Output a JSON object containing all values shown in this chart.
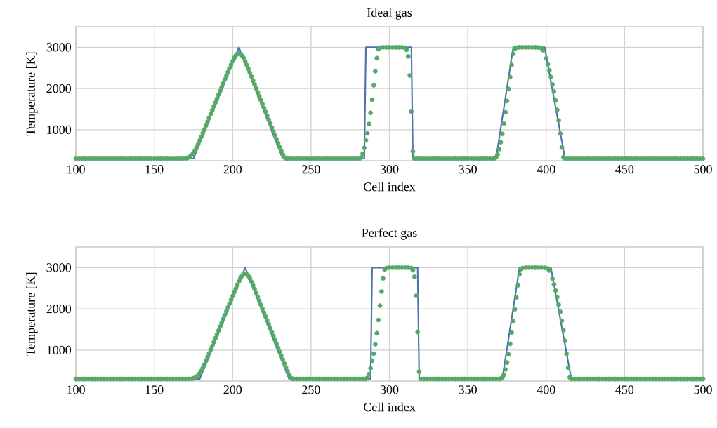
{
  "chart_data": [
    {
      "type": "line",
      "title": "Ideal gas",
      "xlabel": "Cell index",
      "ylabel": "Temperature [K]",
      "xlim": [
        100,
        500
      ],
      "ylim": [
        250,
        3500
      ],
      "xticks": [
        100,
        150,
        200,
        250,
        300,
        350,
        400,
        450,
        500
      ],
      "yticks": [
        1000,
        2000,
        3000
      ],
      "grid": true,
      "series": [
        {
          "color": "#4c72b0",
          "line_style": "solid",
          "marker": "none",
          "x": [
            100,
            175,
            204,
            232,
            284,
            285,
            314,
            315,
            368,
            379,
            399,
            412,
            500
          ],
          "values": [
            300,
            300,
            3000,
            300,
            300,
            3000,
            3000,
            300,
            300,
            3000,
            3000,
            300,
            300
          ]
        },
        {
          "type": "scatter",
          "color": "#55a868",
          "marker": "circle",
          "x": [
            100,
            102,
            104,
            106,
            108,
            110,
            112,
            114,
            116,
            118,
            120,
            122,
            124,
            126,
            128,
            130,
            132,
            134,
            136,
            138,
            140,
            142,
            144,
            146,
            148,
            150,
            152,
            154,
            156,
            158,
            160,
            162,
            164,
            166,
            168,
            170,
            171,
            172,
            173,
            174,
            175,
            176,
            177,
            178,
            179,
            180,
            181,
            182,
            183,
            184,
            185,
            186,
            187,
            188,
            189,
            190,
            191,
            192,
            193,
            194,
            195,
            196,
            197,
            198,
            199,
            200,
            201,
            202,
            203,
            204,
            205,
            206,
            207,
            208,
            209,
            210,
            211,
            212,
            213,
            214,
            215,
            216,
            217,
            218,
            219,
            220,
            221,
            222,
            223,
            224,
            225,
            226,
            227,
            228,
            229,
            230,
            231,
            232,
            233,
            234,
            235,
            237,
            239,
            241,
            243,
            245,
            247,
            249,
            251,
            253,
            255,
            257,
            259,
            261,
            263,
            265,
            267,
            269,
            271,
            273,
            275,
            277,
            279,
            281,
            282,
            283,
            284,
            285,
            286,
            287,
            288,
            289,
            290,
            291,
            292,
            293,
            294,
            296,
            298,
            300,
            302,
            304,
            306,
            308,
            310,
            311,
            312,
            313,
            314,
            315,
            316,
            318,
            320,
            322,
            324,
            326,
            328,
            330,
            332,
            334,
            336,
            338,
            340,
            342,
            344,
            346,
            348,
            350,
            352,
            354,
            356,
            358,
            360,
            362,
            364,
            366,
            367,
            368,
            369,
            370,
            371,
            372,
            373,
            374,
            375,
            376,
            377,
            378,
            379,
            380,
            381,
            383,
            385,
            387,
            389,
            391,
            393,
            395,
            397,
            398,
            400,
            401,
            402,
            403,
            404,
            405,
            406,
            407,
            408,
            409,
            410,
            411,
            412,
            414,
            416,
            418,
            420,
            422,
            424,
            426,
            428,
            430,
            432,
            434,
            436,
            438,
            440,
            442,
            444,
            446,
            448,
            450,
            452,
            454,
            456,
            458,
            460,
            462,
            464,
            466,
            468,
            470,
            472,
            474,
            476,
            478,
            480,
            482,
            484,
            486,
            488,
            490,
            492,
            494,
            496,
            498,
            500
          ],
          "values": [
            300,
            300,
            300,
            300,
            300,
            300,
            300,
            300,
            300,
            300,
            300,
            300,
            300,
            300,
            300,
            300,
            300,
            300,
            300,
            300,
            300,
            300,
            300,
            300,
            300,
            300,
            300,
            300,
            300,
            300,
            300,
            300,
            300,
            300,
            300,
            305,
            315,
            330,
            355,
            390,
            440,
            500,
            570,
            650,
            740,
            830,
            920,
            1010,
            1100,
            1195,
            1290,
            1380,
            1475,
            1570,
            1660,
            1755,
            1850,
            1940,
            2035,
            2125,
            2220,
            2310,
            2400,
            2490,
            2575,
            2660,
            2740,
            2800,
            2840,
            2850,
            2840,
            2800,
            2740,
            2655,
            2570,
            2480,
            2385,
            2290,
            2195,
            2100,
            2005,
            1910,
            1815,
            1720,
            1625,
            1530,
            1435,
            1340,
            1245,
            1150,
            1055,
            960,
            865,
            770,
            675,
            580,
            490,
            400,
            330,
            305,
            300,
            300,
            300,
            300,
            300,
            300,
            300,
            300,
            300,
            300,
            300,
            300,
            300,
            300,
            300,
            300,
            300,
            300,
            300,
            300,
            300,
            300,
            300,
            300,
            330,
            420,
            560,
            744,
            914,
            1142,
            1410,
            1730,
            2077,
            2419,
            2738,
            2954,
            2990,
            3000,
            3000,
            3000,
            3000,
            3000,
            3000,
            3000,
            2990,
            2937,
            2778,
            2316,
            1439,
            476,
            300,
            300,
            300,
            300,
            300,
            300,
            300,
            300,
            300,
            300,
            300,
            300,
            300,
            300,
            300,
            300,
            300,
            300,
            300,
            300,
            300,
            300,
            300,
            300,
            300,
            300,
            310,
            330,
            400,
            530,
            698,
            900,
            1150,
            1425,
            1700,
            1990,
            2280,
            2570,
            2840,
            2960,
            2990,
            3000,
            3000,
            3000,
            3000,
            3000,
            3000,
            2995,
            2980,
            2931,
            2731,
            2588,
            2444,
            2284,
            2101,
            1929,
            1711,
            1482,
            1225,
            910,
            572,
            337,
            300,
            300,
            300,
            300,
            300,
            300,
            300,
            300,
            300,
            300,
            300,
            300,
            300,
            300,
            300,
            300,
            300,
            300,
            300,
            300,
            300,
            300,
            300,
            300,
            300,
            300,
            300,
            300,
            300,
            300,
            300,
            300,
            300,
            300,
            300,
            300,
            300,
            300,
            300,
            300,
            300,
            300,
            300,
            300,
            300
          ]
        }
      ]
    },
    {
      "type": "line",
      "title": "Perfect gas",
      "xlabel": "Cell index",
      "ylabel": "Temperature [K]",
      "xlim": [
        100,
        500
      ],
      "ylim": [
        250,
        3500
      ],
      "xticks": [
        100,
        150,
        200,
        250,
        300,
        350,
        400,
        450,
        500
      ],
      "yticks": [
        1000,
        2000,
        3000
      ],
      "grid": true,
      "series": [
        {
          "color": "#4c72b0",
          "line_style": "solid",
          "marker": "none",
          "x": [
            100,
            179,
            208,
            236,
            288,
            289,
            318,
            319,
            372,
            383,
            403,
            416,
            500
          ],
          "values": [
            300,
            300,
            3000,
            300,
            300,
            3000,
            3000,
            300,
            300,
            3000,
            3000,
            300,
            300
          ]
        },
        {
          "type": "scatter",
          "color": "#55a868",
          "marker": "circle",
          "x": [
            100,
            102,
            104,
            106,
            108,
            110,
            112,
            114,
            116,
            118,
            120,
            122,
            124,
            126,
            128,
            130,
            132,
            134,
            136,
            138,
            140,
            142,
            144,
            146,
            148,
            150,
            152,
            154,
            156,
            158,
            160,
            162,
            164,
            166,
            168,
            170,
            172,
            174,
            175,
            176,
            177,
            178,
            179,
            180,
            181,
            182,
            183,
            184,
            185,
            186,
            187,
            188,
            189,
            190,
            191,
            192,
            193,
            194,
            195,
            196,
            197,
            198,
            199,
            200,
            201,
            202,
            203,
            204,
            205,
            206,
            207,
            208,
            209,
            210,
            211,
            212,
            213,
            214,
            215,
            216,
            217,
            218,
            219,
            220,
            221,
            222,
            223,
            224,
            225,
            226,
            227,
            228,
            229,
            230,
            231,
            232,
            233,
            234,
            235,
            236,
            237,
            238,
            239,
            241,
            243,
            245,
            247,
            249,
            251,
            253,
            255,
            257,
            259,
            261,
            263,
            265,
            267,
            269,
            271,
            273,
            275,
            277,
            279,
            281,
            283,
            285,
            286,
            287,
            288,
            289,
            290,
            291,
            292,
            293,
            294,
            295,
            296,
            297,
            298,
            300,
            302,
            304,
            306,
            308,
            310,
            312,
            314,
            315,
            316,
            317,
            318,
            319,
            320,
            322,
            324,
            326,
            328,
            330,
            332,
            334,
            336,
            338,
            340,
            342,
            344,
            346,
            348,
            350,
            352,
            354,
            356,
            358,
            360,
            362,
            364,
            366,
            368,
            370,
            371,
            372,
            373,
            374,
            375,
            376,
            377,
            378,
            379,
            380,
            381,
            382,
            383,
            384,
            385,
            387,
            389,
            391,
            393,
            395,
            397,
            399,
            401,
            402,
            404,
            405,
            406,
            407,
            408,
            409,
            410,
            411,
            412,
            413,
            414,
            415,
            416,
            418,
            420,
            422,
            424,
            426,
            428,
            430,
            432,
            434,
            436,
            438,
            440,
            442,
            444,
            446,
            448,
            450,
            452,
            454,
            456,
            458,
            460,
            462,
            464,
            466,
            468,
            470,
            472,
            474,
            476,
            478,
            480,
            482,
            484,
            486,
            488,
            490,
            492,
            494,
            496,
            498,
            500
          ],
          "values": [
            300,
            300,
            300,
            300,
            300,
            300,
            300,
            300,
            300,
            300,
            300,
            300,
            300,
            300,
            300,
            300,
            300,
            300,
            300,
            300,
            300,
            300,
            300,
            300,
            300,
            300,
            300,
            300,
            300,
            300,
            300,
            300,
            300,
            300,
            300,
            300,
            300,
            305,
            315,
            330,
            355,
            390,
            440,
            500,
            570,
            650,
            740,
            830,
            920,
            1010,
            1100,
            1195,
            1290,
            1380,
            1475,
            1570,
            1660,
            1755,
            1850,
            1940,
            2035,
            2125,
            2220,
            2310,
            2400,
            2490,
            2575,
            2660,
            2740,
            2800,
            2840,
            2850,
            2840,
            2800,
            2740,
            2655,
            2570,
            2480,
            2385,
            2290,
            2195,
            2100,
            2005,
            1910,
            1815,
            1720,
            1625,
            1530,
            1435,
            1340,
            1245,
            1150,
            1055,
            960,
            865,
            770,
            675,
            580,
            490,
            400,
            330,
            305,
            300,
            300,
            300,
            300,
            300,
            300,
            300,
            300,
            300,
            300,
            300,
            300,
            300,
            300,
            300,
            300,
            300,
            300,
            300,
            300,
            300,
            300,
            300,
            300,
            330,
            420,
            560,
            744,
            914,
            1142,
            1410,
            1730,
            2077,
            2419,
            2738,
            2954,
            2990,
            3000,
            3000,
            3000,
            3000,
            3000,
            3000,
            3000,
            2990,
            2937,
            2778,
            2316,
            1439,
            476,
            300,
            300,
            300,
            300,
            300,
            300,
            300,
            300,
            300,
            300,
            300,
            300,
            300,
            300,
            300,
            300,
            300,
            300,
            300,
            300,
            300,
            300,
            300,
            300,
            300,
            300,
            310,
            330,
            400,
            530,
            698,
            900,
            1150,
            1425,
            1700,
            1990,
            2280,
            2570,
            2840,
            2960,
            2990,
            3000,
            3000,
            3000,
            3000,
            3000,
            3000,
            2995,
            2980,
            2931,
            2731,
            2588,
            2444,
            2284,
            2101,
            1929,
            1711,
            1482,
            1225,
            910,
            572,
            337,
            300,
            300,
            300,
            300,
            300,
            300,
            300,
            300,
            300,
            300,
            300,
            300,
            300,
            300,
            300,
            300,
            300,
            300,
            300,
            300,
            300,
            300,
            300,
            300,
            300,
            300,
            300,
            300,
            300,
            300,
            300,
            300,
            300,
            300,
            300,
            300,
            300,
            300,
            300,
            300,
            300,
            300,
            300
          ]
        }
      ]
    }
  ]
}
